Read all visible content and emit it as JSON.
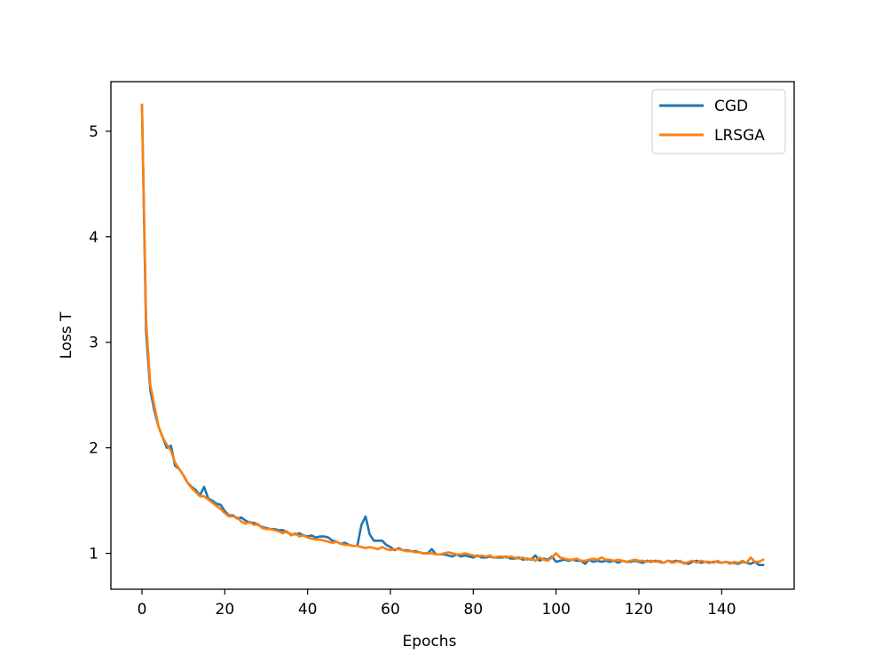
{
  "chart_data": {
    "type": "line",
    "title": "",
    "xlabel": "Epochs",
    "ylabel": "Loss T",
    "xlim": [
      -7.5,
      157.5
    ],
    "ylim": [
      0.66,
      5.47
    ],
    "xticks": [
      0,
      20,
      40,
      60,
      80,
      100,
      120,
      140
    ],
    "yticks": [
      1,
      2,
      3,
      4,
      5
    ],
    "grid": false,
    "legend_position": "top-right",
    "series": [
      {
        "name": "CGD",
        "color": "#1f77b4",
        "points": [
          [
            0,
            5.25
          ],
          [
            1,
            3.1
          ],
          [
            2,
            2.55
          ],
          [
            3,
            2.35
          ],
          [
            4,
            2.2
          ],
          [
            5,
            2.1
          ],
          [
            6,
            2.0
          ],
          [
            7,
            2.02
          ],
          [
            8,
            1.83
          ],
          [
            9,
            1.8
          ],
          [
            10,
            1.74
          ],
          [
            11,
            1.67
          ],
          [
            12,
            1.63
          ],
          [
            13,
            1.6
          ],
          [
            14,
            1.55
          ],
          [
            15,
            1.63
          ],
          [
            16,
            1.52
          ],
          [
            17,
            1.5
          ],
          [
            18,
            1.47
          ],
          [
            19,
            1.46
          ],
          [
            20,
            1.4
          ],
          [
            21,
            1.36
          ],
          [
            22,
            1.36
          ],
          [
            23,
            1.33
          ],
          [
            24,
            1.34
          ],
          [
            25,
            1.31
          ],
          [
            26,
            1.29
          ],
          [
            27,
            1.29
          ],
          [
            28,
            1.27
          ],
          [
            29,
            1.25
          ],
          [
            30,
            1.24
          ],
          [
            31,
            1.23
          ],
          [
            32,
            1.23
          ],
          [
            33,
            1.22
          ],
          [
            34,
            1.22
          ],
          [
            35,
            1.2
          ],
          [
            36,
            1.18
          ],
          [
            37,
            1.18
          ],
          [
            38,
            1.19
          ],
          [
            39,
            1.17
          ],
          [
            40,
            1.16
          ],
          [
            41,
            1.17
          ],
          [
            42,
            1.15
          ],
          [
            43,
            1.16
          ],
          [
            44,
            1.16
          ],
          [
            45,
            1.15
          ],
          [
            46,
            1.12
          ],
          [
            47,
            1.11
          ],
          [
            48,
            1.09
          ],
          [
            49,
            1.1
          ],
          [
            50,
            1.08
          ],
          [
            51,
            1.07
          ],
          [
            52,
            1.07
          ],
          [
            53,
            1.27
          ],
          [
            54,
            1.35
          ],
          [
            55,
            1.18
          ],
          [
            56,
            1.12
          ],
          [
            57,
            1.12
          ],
          [
            58,
            1.12
          ],
          [
            59,
            1.08
          ],
          [
            60,
            1.06
          ],
          [
            61,
            1.03
          ],
          [
            62,
            1.05
          ],
          [
            63,
            1.03
          ],
          [
            64,
            1.03
          ],
          [
            65,
            1.02
          ],
          [
            66,
            1.02
          ],
          [
            67,
            1.01
          ],
          [
            68,
            1.0
          ],
          [
            69,
            1.0
          ],
          [
            70,
            1.04
          ],
          [
            71,
            0.99
          ],
          [
            72,
            0.99
          ],
          [
            73,
            0.99
          ],
          [
            74,
            0.98
          ],
          [
            75,
            0.97
          ],
          [
            76,
            0.99
          ],
          [
            77,
            0.97
          ],
          [
            78,
            0.98
          ],
          [
            79,
            0.97
          ],
          [
            80,
            0.96
          ],
          [
            81,
            0.98
          ],
          [
            82,
            0.96
          ],
          [
            83,
            0.96
          ],
          [
            84,
            0.97
          ],
          [
            85,
            0.96
          ],
          [
            86,
            0.96
          ],
          [
            87,
            0.96
          ],
          [
            88,
            0.97
          ],
          [
            89,
            0.95
          ],
          [
            90,
            0.95
          ],
          [
            91,
            0.96
          ],
          [
            92,
            0.94
          ],
          [
            93,
            0.95
          ],
          [
            94,
            0.94
          ],
          [
            95,
            0.98
          ],
          [
            96,
            0.93
          ],
          [
            97,
            0.95
          ],
          [
            98,
            0.94
          ],
          [
            99,
            0.97
          ],
          [
            100,
            0.92
          ],
          [
            101,
            0.93
          ],
          [
            102,
            0.94
          ],
          [
            103,
            0.93
          ],
          [
            104,
            0.94
          ],
          [
            105,
            0.93
          ],
          [
            106,
            0.93
          ],
          [
            107,
            0.9
          ],
          [
            108,
            0.94
          ],
          [
            109,
            0.92
          ],
          [
            110,
            0.93
          ],
          [
            111,
            0.92
          ],
          [
            112,
            0.93
          ],
          [
            113,
            0.92
          ],
          [
            114,
            0.93
          ],
          [
            115,
            0.91
          ],
          [
            116,
            0.93
          ],
          [
            117,
            0.92
          ],
          [
            118,
            0.92
          ],
          [
            119,
            0.93
          ],
          [
            120,
            0.92
          ],
          [
            121,
            0.91
          ],
          [
            122,
            0.93
          ],
          [
            123,
            0.92
          ],
          [
            124,
            0.93
          ],
          [
            125,
            0.92
          ],
          [
            126,
            0.91
          ],
          [
            127,
            0.93
          ],
          [
            128,
            0.92
          ],
          [
            129,
            0.93
          ],
          [
            130,
            0.92
          ],
          [
            131,
            0.91
          ],
          [
            132,
            0.9
          ],
          [
            133,
            0.92
          ],
          [
            134,
            0.93
          ],
          [
            135,
            0.91
          ],
          [
            136,
            0.92
          ],
          [
            137,
            0.91
          ],
          [
            138,
            0.92
          ],
          [
            139,
            0.92
          ],
          [
            140,
            0.91
          ],
          [
            141,
            0.92
          ],
          [
            142,
            0.91
          ],
          [
            143,
            0.91
          ],
          [
            144,
            0.9
          ],
          [
            145,
            0.92
          ],
          [
            146,
            0.91
          ],
          [
            147,
            0.9
          ],
          [
            148,
            0.92
          ],
          [
            149,
            0.89
          ],
          [
            150,
            0.89
          ]
        ]
      },
      {
        "name": "LRSGA",
        "color": "#ff7f0e",
        "points": [
          [
            0,
            5.25
          ],
          [
            1,
            3.2
          ],
          [
            2,
            2.6
          ],
          [
            3,
            2.4
          ],
          [
            4,
            2.2
          ],
          [
            5,
            2.1
          ],
          [
            6,
            2.03
          ],
          [
            7,
            1.97
          ],
          [
            8,
            1.86
          ],
          [
            9,
            1.8
          ],
          [
            10,
            1.74
          ],
          [
            11,
            1.67
          ],
          [
            12,
            1.62
          ],
          [
            13,
            1.58
          ],
          [
            14,
            1.54
          ],
          [
            15,
            1.54
          ],
          [
            16,
            1.51
          ],
          [
            17,
            1.48
          ],
          [
            18,
            1.45
          ],
          [
            19,
            1.42
          ],
          [
            20,
            1.38
          ],
          [
            21,
            1.35
          ],
          [
            22,
            1.35
          ],
          [
            23,
            1.34
          ],
          [
            24,
            1.3
          ],
          [
            25,
            1.28
          ],
          [
            26,
            1.3
          ],
          [
            27,
            1.27
          ],
          [
            28,
            1.28
          ],
          [
            29,
            1.24
          ],
          [
            30,
            1.23
          ],
          [
            31,
            1.23
          ],
          [
            32,
            1.22
          ],
          [
            33,
            1.21
          ],
          [
            34,
            1.19
          ],
          [
            35,
            1.21
          ],
          [
            36,
            1.17
          ],
          [
            37,
            1.19
          ],
          [
            38,
            1.16
          ],
          [
            39,
            1.17
          ],
          [
            40,
            1.15
          ],
          [
            41,
            1.14
          ],
          [
            42,
            1.13
          ],
          [
            43,
            1.13
          ],
          [
            44,
            1.12
          ],
          [
            45,
            1.11
          ],
          [
            46,
            1.1
          ],
          [
            47,
            1.11
          ],
          [
            48,
            1.09
          ],
          [
            49,
            1.08
          ],
          [
            50,
            1.08
          ],
          [
            51,
            1.07
          ],
          [
            52,
            1.07
          ],
          [
            53,
            1.06
          ],
          [
            54,
            1.05
          ],
          [
            55,
            1.06
          ],
          [
            56,
            1.05
          ],
          [
            57,
            1.04
          ],
          [
            58,
            1.06
          ],
          [
            59,
            1.04
          ],
          [
            60,
            1.03
          ],
          [
            61,
            1.04
          ],
          [
            62,
            1.04
          ],
          [
            63,
            1.03
          ],
          [
            64,
            1.02
          ],
          [
            65,
            1.02
          ],
          [
            66,
            1.01
          ],
          [
            67,
            1.01
          ],
          [
            68,
            1.0
          ],
          [
            69,
            1.0
          ],
          [
            70,
            1.0
          ],
          [
            71,
            0.99
          ],
          [
            72,
            0.99
          ],
          [
            73,
            1.0
          ],
          [
            74,
            1.01
          ],
          [
            75,
            1.0
          ],
          [
            76,
            0.99
          ],
          [
            77,
            0.99
          ],
          [
            78,
            1.0
          ],
          [
            79,
            0.99
          ],
          [
            80,
            0.98
          ],
          [
            81,
            0.97
          ],
          [
            82,
            0.98
          ],
          [
            83,
            0.97
          ],
          [
            84,
            0.98
          ],
          [
            85,
            0.96
          ],
          [
            86,
            0.97
          ],
          [
            87,
            0.97
          ],
          [
            88,
            0.96
          ],
          [
            89,
            0.97
          ],
          [
            90,
            0.96
          ],
          [
            91,
            0.95
          ],
          [
            92,
            0.96
          ],
          [
            93,
            0.94
          ],
          [
            94,
            0.95
          ],
          [
            95,
            0.93
          ],
          [
            96,
            0.96
          ],
          [
            97,
            0.94
          ],
          [
            98,
            0.93
          ],
          [
            99,
            0.96
          ],
          [
            100,
            1.0
          ],
          [
            101,
            0.96
          ],
          [
            102,
            0.95
          ],
          [
            103,
            0.94
          ],
          [
            104,
            0.94
          ],
          [
            105,
            0.95
          ],
          [
            106,
            0.93
          ],
          [
            107,
            0.93
          ],
          [
            108,
            0.94
          ],
          [
            109,
            0.95
          ],
          [
            110,
            0.94
          ],
          [
            111,
            0.96
          ],
          [
            112,
            0.94
          ],
          [
            113,
            0.94
          ],
          [
            114,
            0.93
          ],
          [
            115,
            0.94
          ],
          [
            116,
            0.93
          ],
          [
            117,
            0.92
          ],
          [
            118,
            0.93
          ],
          [
            119,
            0.94
          ],
          [
            120,
            0.93
          ],
          [
            121,
            0.93
          ],
          [
            122,
            0.92
          ],
          [
            123,
            0.93
          ],
          [
            124,
            0.92
          ],
          [
            125,
            0.93
          ],
          [
            126,
            0.91
          ],
          [
            127,
            0.93
          ],
          [
            128,
            0.91
          ],
          [
            129,
            0.92
          ],
          [
            130,
            0.93
          ],
          [
            131,
            0.9
          ],
          [
            132,
            0.92
          ],
          [
            133,
            0.93
          ],
          [
            134,
            0.91
          ],
          [
            135,
            0.93
          ],
          [
            136,
            0.92
          ],
          [
            137,
            0.92
          ],
          [
            138,
            0.91
          ],
          [
            139,
            0.93
          ],
          [
            140,
            0.91
          ],
          [
            141,
            0.92
          ],
          [
            142,
            0.9
          ],
          [
            143,
            0.92
          ],
          [
            144,
            0.91
          ],
          [
            145,
            0.93
          ],
          [
            146,
            0.91
          ],
          [
            147,
            0.96
          ],
          [
            148,
            0.92
          ],
          [
            149,
            0.92
          ],
          [
            150,
            0.94
          ]
        ]
      }
    ]
  }
}
